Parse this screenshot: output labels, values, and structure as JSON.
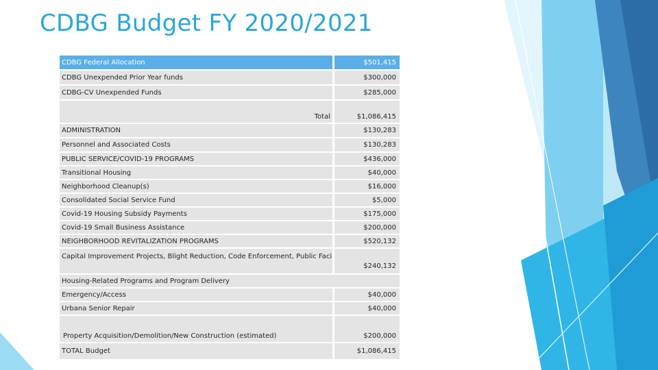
{
  "slide": {
    "title": "CDBG Budget FY 2020/2021"
  },
  "theme": {
    "title_color": "#2aa6d9",
    "header_row_color": "#5aafe8",
    "cell_color": "#e4e4e4"
  },
  "table": {
    "rows": [
      {
        "label": "CDBG Federal Allocation",
        "amount": "$501,415"
      },
      {
        "label": "CDBG Unexpended Prior Year funds",
        "amount": "$300,000"
      },
      {
        "label": "CDBG-CV Unexpended Funds",
        "amount": "$285,000"
      },
      {
        "label": "Total",
        "amount": "$1,086,415"
      },
      {
        "label": "ADMINISTRATION",
        "amount": "$130,283"
      },
      {
        "label": "Personnel and Associated Costs",
        "amount": "$130,283"
      },
      {
        "label": "PUBLIC SERVICE/COVID-19 PROGRAMS",
        "amount": "$436,000"
      },
      {
        "label": "Transitional Housing",
        "amount": "$40,000"
      },
      {
        "label": "Neighborhood Cleanup(s)",
        "amount": "$16,000"
      },
      {
        "label": "Consolidated Social Service Fund",
        "amount": "$5,000"
      },
      {
        "label": "Covid-19 Housing Subsidy Payments",
        "amount": "$175,000"
      },
      {
        "label": "Covid-19 Small Business Assistance",
        "amount": "$200,000"
      },
      {
        "label": "NEIGHBORHOOD REVITALIZATION PROGRAMS",
        "amount": "$520,132"
      },
      {
        "label": "Capital Improvement Projects, Blight Reduction, Code Enforcement, Public Facility, Economic Development",
        "amount": "$240,132"
      },
      {
        "label": "Housing-Related Programs and Program Delivery",
        "amount": ""
      },
      {
        "label": "Emergency/Access",
        "amount": "$40,000"
      },
      {
        "label": "Urbana Senior Repair",
        "amount": "$40,000"
      },
      {
        "label": "Property Acquisition/Demolition/New Construction (estimated)",
        "amount": "$200,000"
      },
      {
        "label": "TOTAL Budget",
        "amount": "$1,086,415"
      }
    ]
  }
}
